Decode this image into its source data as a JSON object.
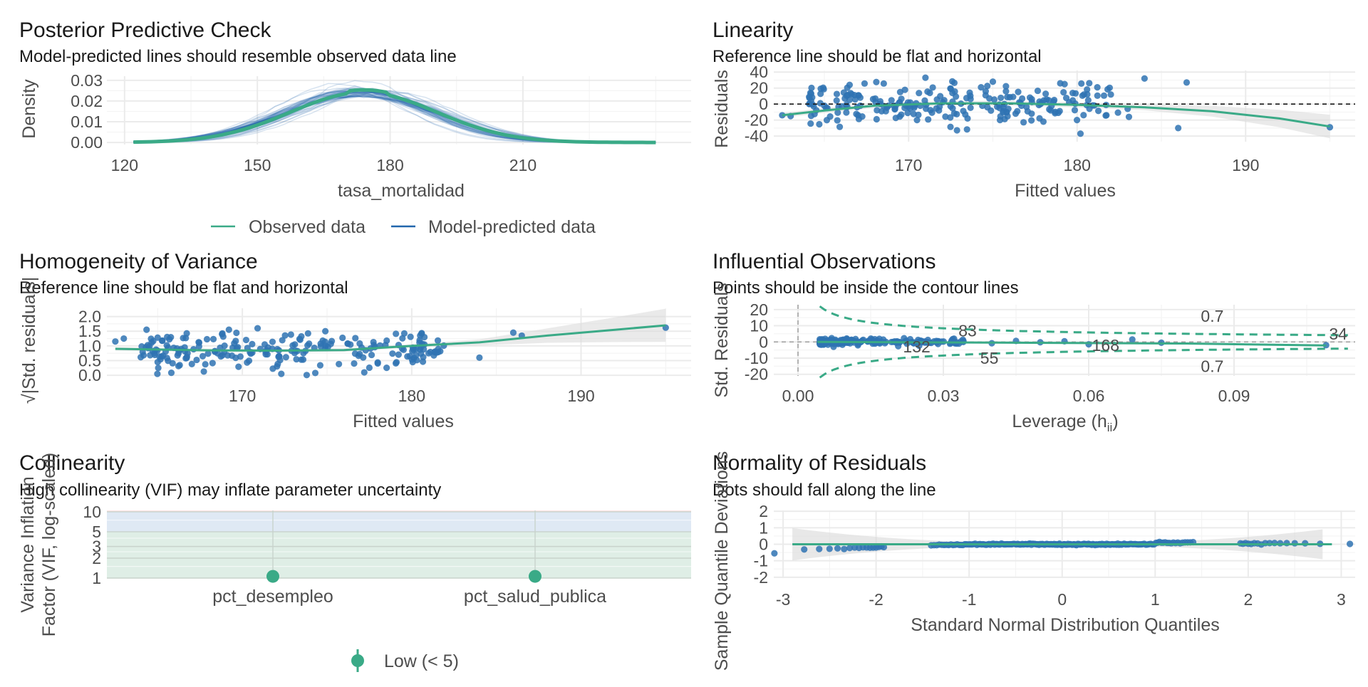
{
  "colors": {
    "green": "#3aaa87",
    "blue": "#2166ac",
    "point": "#2f73b3",
    "ribbon": "#d9d9d9",
    "grid": "#ebebeb"
  },
  "chart_data": [
    {
      "id": "ppc",
      "type": "line",
      "title": "Posterior Predictive Check",
      "subtitle": "Model-predicted lines should resemble observed data line",
      "xlabel": "tasa_mortalidad",
      "ylabel": "Density",
      "xlim": [
        116,
        248
      ],
      "ylim": [
        -0.001,
        0.032
      ],
      "xticks": [
        120,
        150,
        180,
        210
      ],
      "yticks": [
        "0.00",
        "0.01",
        "0.02",
        "0.03"
      ],
      "legend": [
        "Observed data",
        "Model-predicted data"
      ],
      "observed": {
        "mean": 174,
        "sd": 16.5,
        "range": [
          122,
          240
        ]
      },
      "predicted_draws": 50,
      "grid": true
    },
    {
      "id": "lin",
      "type": "scatter",
      "title": "Linearity",
      "subtitle": "Reference line should be flat and horizontal",
      "xlabel": "Fitted values",
      "ylabel": "Residuals",
      "xlim": [
        162,
        196.5
      ],
      "ylim": [
        -47,
        42
      ],
      "xticks": [
        170,
        180,
        190
      ],
      "yticks": [
        "-40",
        "-20",
        "0",
        "20",
        "40"
      ],
      "reference_line": 0,
      "smooth": [
        [
          162.5,
          -14
        ],
        [
          165,
          -8
        ],
        [
          168,
          -2
        ],
        [
          172,
          1
        ],
        [
          176,
          1
        ],
        [
          180,
          -1
        ],
        [
          184,
          -4
        ],
        [
          188,
          -9
        ],
        [
          192,
          -18
        ],
        [
          195,
          -28
        ]
      ],
      "points": [
        [
          162.5,
          -14
        ],
        [
          195,
          -29
        ],
        [
          186,
          -30
        ],
        [
          186.5,
          27
        ],
        [
          184,
          32
        ],
        [
          180.2,
          -37
        ],
        [
          171,
          33
        ],
        [
          165,
          -2
        ],
        [
          163,
          -15
        ],
        [
          164.1,
          9
        ],
        [
          166.5,
          24
        ],
        [
          170.5,
          -20
        ],
        [
          175,
          28
        ],
        [
          178,
          -22
        ],
        [
          179,
          26
        ],
        [
          181.2,
          21
        ],
        [
          182,
          12
        ],
        [
          183,
          -6
        ],
        [
          175.4,
          -5
        ],
        [
          172.6,
          14
        ],
        [
          170.1,
          2
        ],
        [
          168.4,
          -9
        ],
        [
          176.2,
          9
        ],
        [
          177.3,
          -12
        ],
        [
          174.3,
          21
        ],
        [
          169.5,
          15
        ],
        [
          167,
          -14
        ],
        [
          171.8,
          -8
        ],
        [
          173.5,
          -18
        ],
        [
          178.6,
          3
        ]
      ],
      "scatter_n": 220,
      "grid": true
    },
    {
      "id": "hov",
      "type": "scatter",
      "title": "Homogeneity of Variance",
      "subtitle": "Reference line should be flat and horizontal",
      "xlabel": "Fitted values",
      "ylabel": "√|Std. residuals|",
      "xlim": [
        162,
        196.5
      ],
      "ylim": [
        -0.02,
        2.28
      ],
      "xticks": [
        170,
        180,
        190
      ],
      "yticks": [
        "0.0",
        "0.5",
        "1.0",
        "1.5",
        "2.0"
      ],
      "smooth": [
        [
          162.5,
          0.9
        ],
        [
          168,
          0.85
        ],
        [
          172,
          0.84
        ],
        [
          176,
          0.86
        ],
        [
          180,
          1.0
        ],
        [
          184,
          1.12
        ],
        [
          188,
          1.35
        ],
        [
          192,
          1.55
        ],
        [
          195,
          1.7
        ]
      ],
      "points": [
        [
          195,
          1.62
        ],
        [
          186,
          1.45
        ],
        [
          186.5,
          1.35
        ],
        [
          184,
          0.6
        ],
        [
          181,
          0.75
        ],
        [
          180.5,
          1.35
        ],
        [
          162.5,
          1.15
        ],
        [
          163,
          1.25
        ],
        [
          165,
          0.45
        ],
        [
          170.9,
          1.6
        ],
        [
          172.3,
          0.05
        ],
        [
          174.9,
          1.5
        ],
        [
          177.2,
          0.1
        ],
        [
          168.8,
          1.4
        ],
        [
          176.6,
          0.4
        ],
        [
          173.1,
          1.05
        ]
      ],
      "scatter_n": 220,
      "grid": true
    },
    {
      "id": "inf",
      "type": "scatter",
      "title": "Influential Observations",
      "subtitle": "Points should be inside the contour lines",
      "xlabel": "Leverage (h",
      "xlabel_sub": "ii",
      "xlabel_end": ")",
      "ylabel": "Std. Residuals",
      "xlim": [
        -0.005,
        0.115
      ],
      "ylim": [
        -21,
        23
      ],
      "xticks": [
        "0.00",
        "0.03",
        "0.06",
        "0.09"
      ],
      "xtick_values": [
        0,
        0.03,
        0.06,
        0.09
      ],
      "yticks": [
        "-20",
        "-10",
        "0",
        "10",
        "20"
      ],
      "contour_label": "0.7",
      "labels": [
        {
          "text": "83",
          "x": 0.035,
          "y": 7
        },
        {
          "text": "132",
          "x": 0.0245,
          "y": -3
        },
        {
          "text": "55",
          "x": 0.0395,
          "y": -10
        },
        {
          "text": "168",
          "x": 0.0635,
          "y": -2
        },
        {
          "text": "34",
          "x": 0.1115,
          "y": 5
        }
      ],
      "points": [
        [
          0.06,
          -1.5
        ],
        [
          0.069,
          1.5
        ],
        [
          0.075,
          -0.5
        ],
        [
          0.109,
          -2
        ],
        [
          0.04,
          -0.8
        ],
        [
          0.045,
          0.6
        ],
        [
          0.05,
          -0.2
        ],
        [
          0.055,
          0.4
        ]
      ],
      "scatter_n": 200,
      "grid": true
    },
    {
      "id": "col",
      "type": "scatter",
      "title": "Collinearity",
      "subtitle": "High collinearity (VIF) may inflate parameter uncertainty",
      "xlabel": "",
      "ylabel": "Variance Inflation\nFactor (VIF, log-scaled)",
      "categories": [
        "pct_desempleo",
        "pct_salud_publica"
      ],
      "values": [
        1.01,
        1.01
      ],
      "yscale": "log",
      "ylim": [
        1,
        10.5
      ],
      "yticks": [
        "1",
        "2",
        "3",
        "5",
        "10"
      ],
      "ytick_values": [
        1,
        2,
        3,
        5,
        10
      ],
      "legend": [
        "Low (< 5)"
      ],
      "grid": true
    },
    {
      "id": "qq",
      "type": "scatter",
      "title": "Normality of Residuals",
      "subtitle": "Dots should fall along the line",
      "xlabel": "Standard Normal Distribution Quantiles",
      "ylabel": "Sample Quantile Deviations",
      "xlim": [
        -3.1,
        3.15
      ],
      "ylim": [
        -2.05,
        2.05
      ],
      "xticks": [
        "-3",
        "-2",
        "-1",
        "0",
        "1",
        "2",
        "3"
      ],
      "xtick_values": [
        -3,
        -2,
        -1,
        0,
        1,
        2,
        3
      ],
      "yticks": [
        "-2",
        "-1",
        "0",
        "1",
        "2"
      ],
      "points_n": 220,
      "grid": true
    }
  ]
}
